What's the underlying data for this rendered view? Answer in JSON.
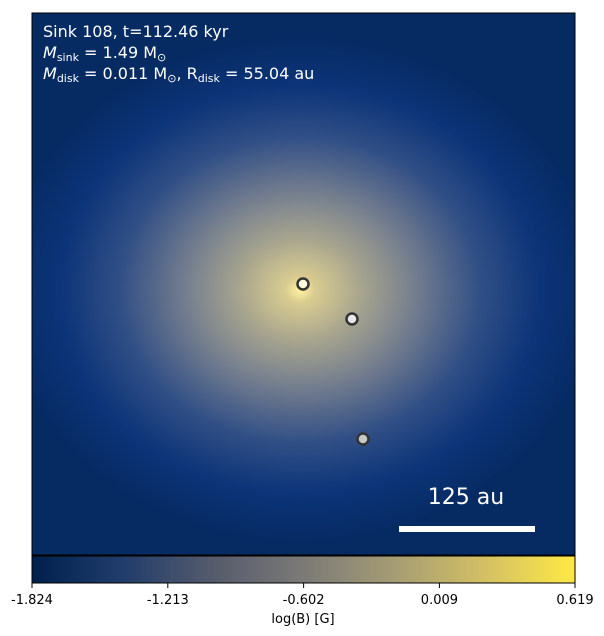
{
  "chart_data": {
    "type": "image",
    "annotations": [
      [
        "Sink 108, t=112.46 kyr"
      ],
      [
        "M",
        "sink",
        " = 1.49 M",
        "⊙"
      ],
      [
        "M",
        "disk",
        " = 0.011 M",
        "⊙",
        ", R",
        "disk",
        " = 55.04 au"
      ]
    ],
    "scale_bar": "125 au",
    "colormap": [
      "#00204c",
      "#213d6b",
      "#555b6c",
      "#7b7a77",
      "#a59c74",
      "#d3c064",
      "#ffe945"
    ],
    "clim": [
      -1.824,
      0.619
    ],
    "cticks": [
      -1.824,
      -1.213,
      -0.602,
      0.009,
      0.619
    ],
    "clabel": "log(B) [G]"
  }
}
